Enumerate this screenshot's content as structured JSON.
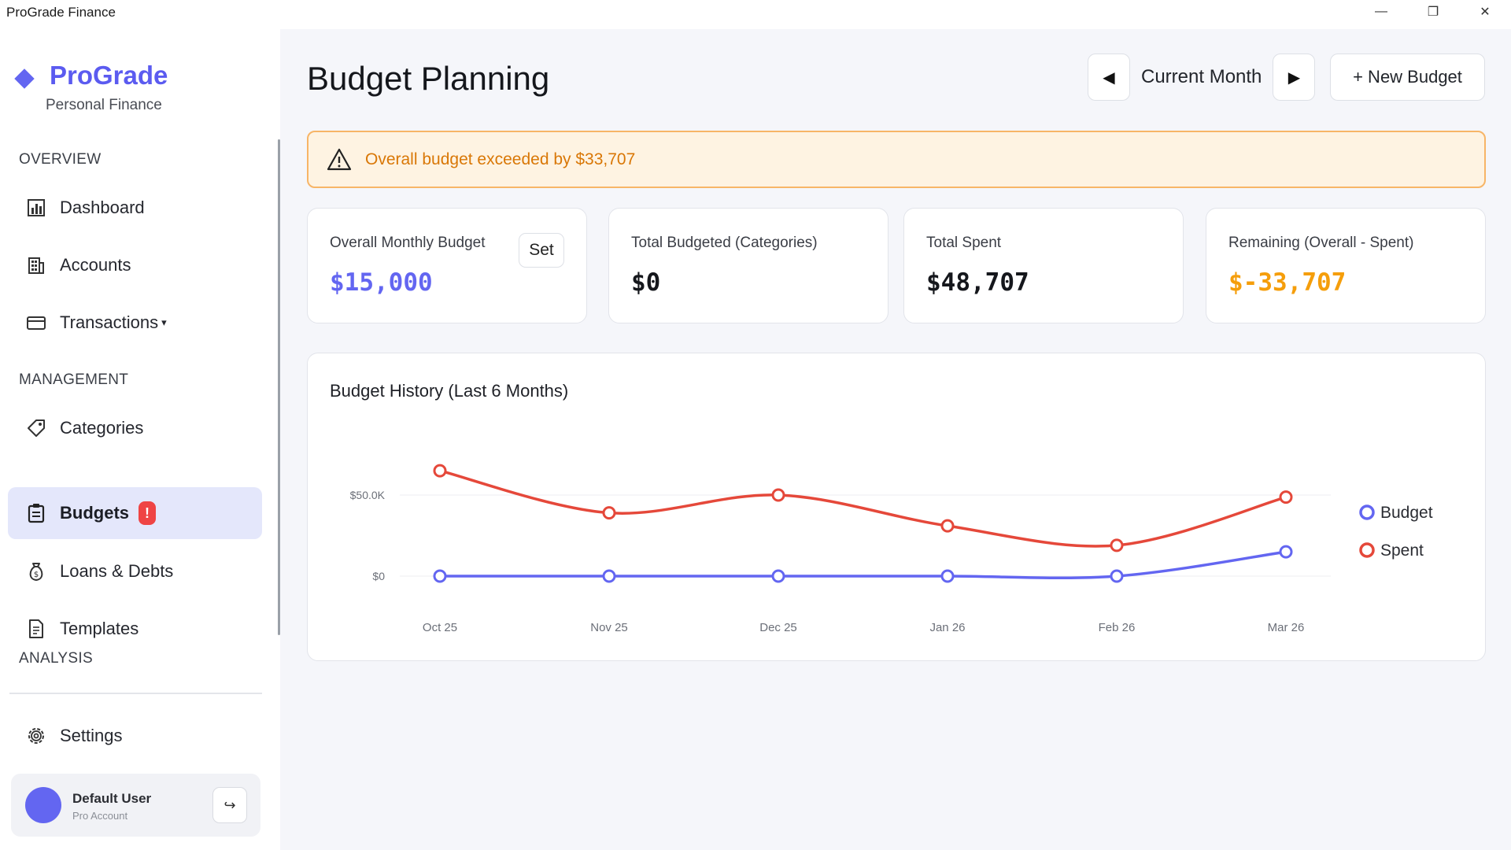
{
  "window": {
    "title": "ProGrade Finance",
    "minimize_glyph": "—",
    "restore_glyph": "❐",
    "close_glyph": "✕"
  },
  "brand": {
    "name": "ProGrade",
    "subtitle": "Personal Finance",
    "accent": "#6366f1"
  },
  "sidebar": {
    "sections": {
      "overview": "OVERVIEW",
      "management": "MANAGEMENT",
      "analysis": "ANALYSIS"
    },
    "items": [
      {
        "label": "Dashboard",
        "icon": "bar-chart-icon"
      },
      {
        "label": "Accounts",
        "icon": "building-icon"
      },
      {
        "label": "Transactions",
        "icon": "card-icon",
        "caret": "▾"
      },
      {
        "label": "Categories",
        "icon": "tag-icon"
      },
      {
        "label": "Budgets",
        "icon": "clipboard-icon",
        "active": true,
        "badge": "!"
      },
      {
        "label": "Loans & Debts",
        "icon": "money-bag-icon"
      },
      {
        "label": "Templates",
        "icon": "document-icon"
      }
    ],
    "settings_label": "Settings",
    "user": {
      "name": "Default User",
      "role": "Pro Account",
      "logout_glyph": "↪"
    }
  },
  "header": {
    "title": "Budget Planning",
    "prev_glyph": "◀",
    "next_glyph": "▶",
    "month_label": "Current Month",
    "new_budget_label": "+ New Budget"
  },
  "alert": {
    "text": "Overall budget exceeded by $33,707",
    "color": "#d97706"
  },
  "cards": [
    {
      "label": "Overall Monthly Budget",
      "value": "$15,000",
      "value_color": "#6366f1",
      "action_label": "Set"
    },
    {
      "label": "Total Budgeted (Categories)",
      "value": "$0",
      "value_color": "#15171c"
    },
    {
      "label": "Total Spent",
      "value": "$48,707",
      "value_color": "#15171c"
    },
    {
      "label": "Remaining (Overall - Spent)",
      "value": "$-33,707",
      "value_color": "#f59e0b"
    }
  ],
  "chart_data": {
    "type": "line",
    "title": "Budget History (Last 6 Months)",
    "categories": [
      "Oct 25",
      "Nov 25",
      "Dec 25",
      "Jan 26",
      "Feb 26",
      "Mar 26"
    ],
    "y_ticks": [
      {
        "value": 0,
        "label": "$0"
      },
      {
        "value": 50000,
        "label": "$50.0K"
      }
    ],
    "ylim": [
      0,
      65000
    ],
    "series": [
      {
        "name": "Budget",
        "color": "#6366f1",
        "values": [
          0,
          0,
          0,
          0,
          0,
          15000
        ]
      },
      {
        "name": "Spent",
        "color": "#e5483a",
        "values": [
          65000,
          39000,
          50000,
          31000,
          19000,
          48707
        ]
      }
    ],
    "grid": true,
    "legend": "right"
  }
}
